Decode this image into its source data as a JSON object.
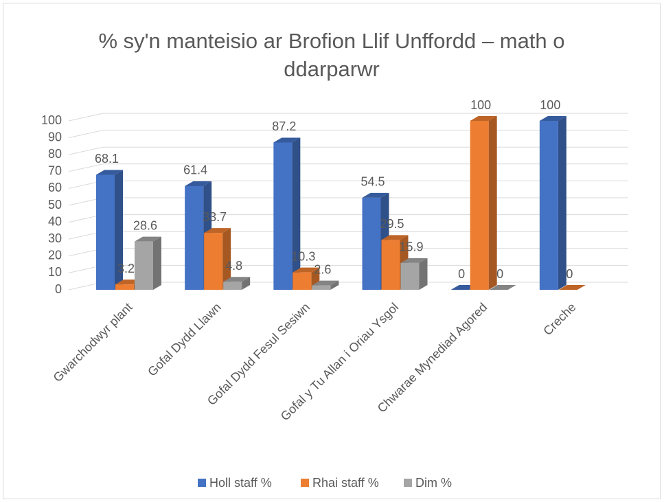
{
  "chart_data": {
    "type": "bar3d",
    "title": "% sy'n manteisio ar Brofion Llif Unffordd – math o ddarparwr",
    "categories": [
      "Gwarchodwyr plant",
      "Gofal Dydd Llawn",
      "Gofal Dydd Fesul Sesiwn",
      "Gofal y Tu Allan i Oriau Ysgol",
      "Chwarae Mynediad Agored",
      "Creche"
    ],
    "series": [
      {
        "name": "Holl staff %",
        "color": "#4472c4",
        "values": [
          68.1,
          61.4,
          87.2,
          54.5,
          0,
          100
        ]
      },
      {
        "name": "Rhai staff %",
        "color": "#ed7d31",
        "values": [
          3.2,
          33.7,
          10.3,
          29.5,
          100,
          0
        ]
      },
      {
        "name": "Dim %",
        "color": "#a5a5a5",
        "values": [
          28.6,
          4.8,
          2.6,
          15.9,
          0,
          null
        ]
      }
    ],
    "ylim": [
      0,
      100
    ],
    "yticks": [
      0,
      10,
      20,
      30,
      40,
      50,
      60,
      70,
      80,
      90,
      100
    ],
    "grid": true,
    "legend": "bottom"
  }
}
